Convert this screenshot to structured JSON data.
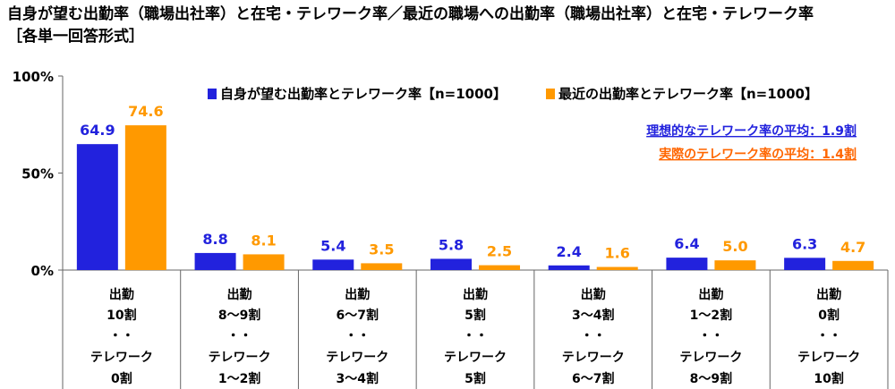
{
  "title": "自身が望む出勤率（職場出社率）と在宅・テレワーク率／最近の職場への出勤率（職場出社率）と在宅・テレワーク率",
  "subtitle": "［各単一回答形式］",
  "chart_data": {
    "type": "bar",
    "categories": [
      [
        "出勤",
        "10割",
        "・・",
        "テレワーク",
        "0割"
      ],
      [
        "出勤",
        "8～9割",
        "・・",
        "テレワーク",
        "1～2割"
      ],
      [
        "出勤",
        "6～7割",
        "・・",
        "テレワーク",
        "3～4割"
      ],
      [
        "出勤",
        "5割",
        "・・",
        "テレワーク",
        "5割"
      ],
      [
        "出勤",
        "3～4割",
        "・・",
        "テレワーク",
        "6～7割"
      ],
      [
        "出勤",
        "1～2割",
        "・・",
        "テレワーク",
        "8～9割"
      ],
      [
        "出勤",
        "0割",
        "・・",
        "テレワーク",
        "10割"
      ]
    ],
    "series": [
      {
        "name": "自身が望む出勤率とテレワーク率【n=1000】",
        "color": "#2222dd",
        "values": [
          64.9,
          8.8,
          5.4,
          5.8,
          2.4,
          6.4,
          6.3
        ],
        "labels": [
          "64.9",
          "8.8",
          "5.4",
          "5.8",
          "2.4",
          "6.4",
          "6.3"
        ]
      },
      {
        "name": "最近の出勤率とテレワーク率【n=1000】",
        "color": "#ff9900",
        "values": [
          74.6,
          8.1,
          3.5,
          2.5,
          1.6,
          5.0,
          4.7
        ],
        "labels": [
          "74.6",
          "8.1",
          "3.5",
          "2.5",
          "1.6",
          "5.0",
          "4.7"
        ]
      }
    ],
    "ylim": [
      0,
      100
    ],
    "yticks": [
      "0%",
      "50%",
      "100%"
    ],
    "legend_position": "top-right",
    "annotations": [
      {
        "text": "理想的なテレワーク率の平均：1.9割",
        "color": "#2222dd"
      },
      {
        "text": "実際のテレワーク率の平均：1.4割",
        "color": "#ff6600"
      }
    ]
  }
}
